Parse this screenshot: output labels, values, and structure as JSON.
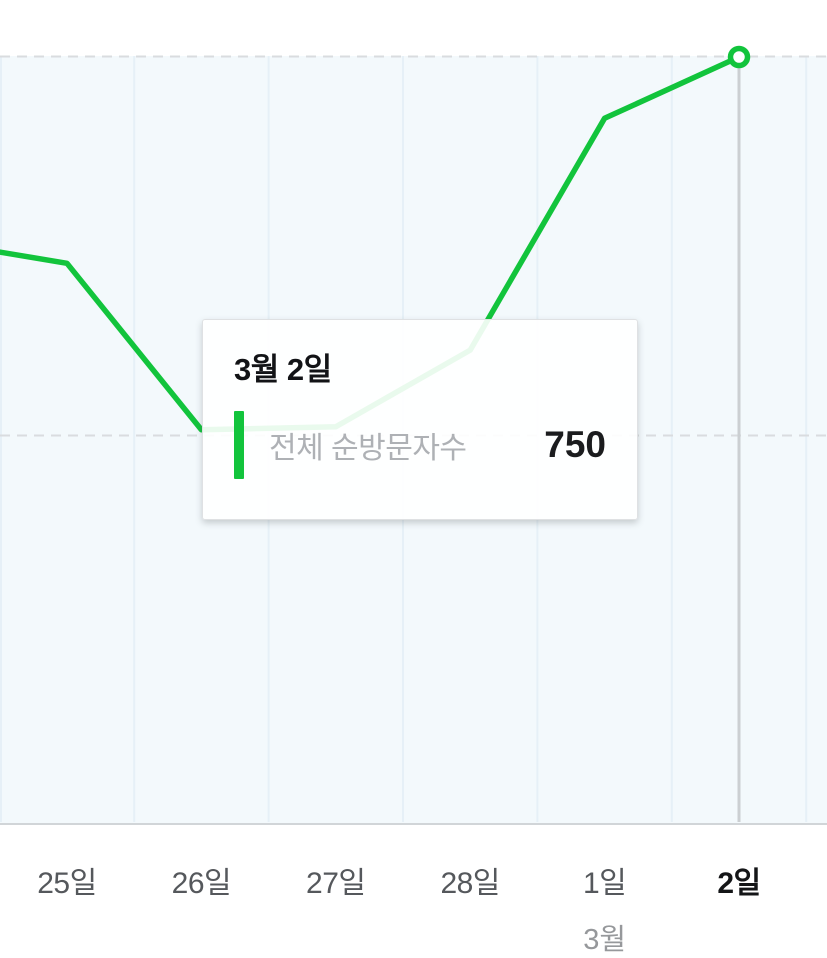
{
  "chart_data": {
    "type": "line",
    "title": "",
    "categories": [
      "25일",
      "26일",
      "27일",
      "28일",
      "1일",
      "2일"
    ],
    "series": [
      {
        "name": "전체 순방문자수",
        "color": "#12C43C",
        "values": [
          548,
          385,
          388,
          463,
          690,
          750
        ],
        "lead_in_value": 570
      }
    ],
    "month_label": "3월",
    "month_label_under_category": "1일",
    "selected_category": "2일",
    "selected_value": 750,
    "ylim": [
      0,
      790
    ],
    "y_gridline_values_est": [
      750,
      380
    ],
    "grid": "horizontal-dashed, faint vertical column separators",
    "legend_position": "none (tooltip only)"
  },
  "tooltip": {
    "title": "3월 2일",
    "series_label": "전체 순방문자수",
    "value": "750"
  },
  "x_axis": {
    "labels": [
      "25일",
      "26일",
      "27일",
      "28일",
      "1일",
      "2일"
    ],
    "month": "3월"
  },
  "colors": {
    "line_green": "#12C43C",
    "plot_background": "#f3f9fc",
    "vertical_gridline": "#e6f0f7",
    "dashed_gridline": "#d9dcdf",
    "axis_line": "#d1d5d8",
    "hover_line": "#cbcfd2",
    "axis_label": "#55585c",
    "selected_axis_label": "#141517",
    "month_label": "#96989b",
    "tooltip_label": "#aeb1b5",
    "tooltip_value": "#1b1c1e"
  }
}
